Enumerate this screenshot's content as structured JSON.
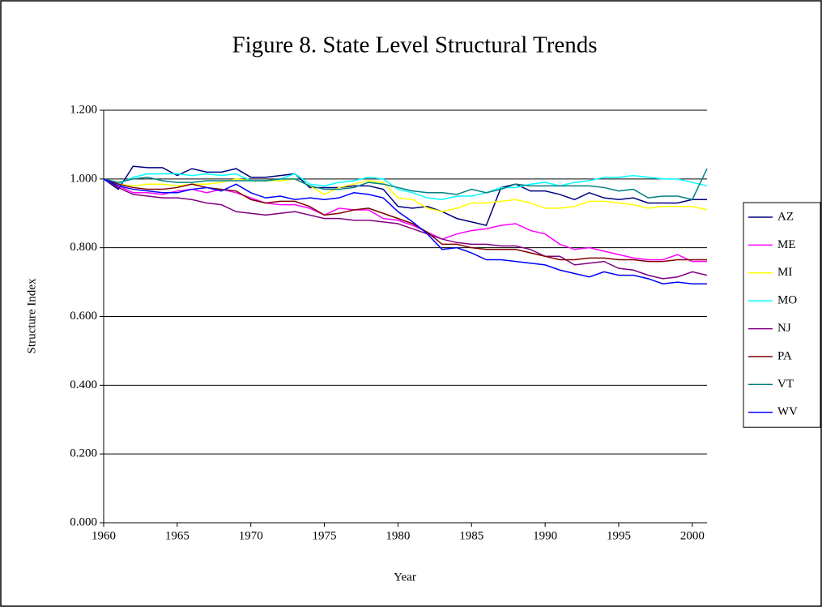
{
  "chart_data": {
    "type": "line",
    "title": "Figure 8.  State Level Structural Trends",
    "x_label": "Year",
    "y_label": "Structure Index",
    "x": [
      1960,
      1961,
      1962,
      1963,
      1964,
      1965,
      1966,
      1967,
      1968,
      1969,
      1970,
      1971,
      1972,
      1973,
      1974,
      1975,
      1976,
      1977,
      1978,
      1979,
      1980,
      1981,
      1982,
      1983,
      1984,
      1985,
      1986,
      1987,
      1988,
      1989,
      1990,
      1991,
      1992,
      1993,
      1994,
      1995,
      1996,
      1997,
      1998,
      1999,
      2000,
      2001
    ],
    "xlim": [
      1960,
      2001
    ],
    "xticks": [
      1960,
      1965,
      1970,
      1975,
      1980,
      1985,
      1990,
      1995,
      2000
    ],
    "ylim": [
      0,
      1.2
    ],
    "yticks": [
      {
        "value": 0,
        "label": "0.000"
      },
      {
        "value": 0.2,
        "label": "0.200"
      },
      {
        "value": 0.4,
        "label": "0.400"
      },
      {
        "value": 0.6,
        "label": "0.600"
      },
      {
        "value": 0.8,
        "label": "0.800"
      },
      {
        "value": 1.0,
        "label": "1.000"
      },
      {
        "value": 1.2,
        "label": "1.200"
      }
    ],
    "grid": true,
    "legend": "right",
    "series": [
      {
        "name": "AZ",
        "color": "#000080",
        "values": [
          1.0,
          0.97,
          1.037,
          1.033,
          1.033,
          1.01,
          1.03,
          1.02,
          1.02,
          1.03,
          1.005,
          1.005,
          1.01,
          1.015,
          0.975,
          0.975,
          0.975,
          0.98,
          0.98,
          0.97,
          0.92,
          0.915,
          0.92,
          0.905,
          0.885,
          0.875,
          0.865,
          0.975,
          0.985,
          0.965,
          0.965,
          0.955,
          0.94,
          0.96,
          0.945,
          0.94,
          0.945,
          0.93,
          0.93,
          0.93,
          0.94,
          0.94
        ]
      },
      {
        "name": "ME",
        "color": "#ff00ff",
        "values": [
          1.0,
          0.98,
          0.96,
          0.96,
          0.955,
          0.965,
          0.97,
          0.96,
          0.97,
          0.96,
          0.945,
          0.93,
          0.925,
          0.925,
          0.915,
          0.895,
          0.915,
          0.91,
          0.91,
          0.885,
          0.88,
          0.865,
          0.845,
          0.825,
          0.84,
          0.85,
          0.855,
          0.865,
          0.87,
          0.85,
          0.84,
          0.81,
          0.795,
          0.8,
          0.79,
          0.78,
          0.77,
          0.765,
          0.765,
          0.78,
          0.76,
          0.76
        ]
      },
      {
        "name": "MI",
        "color": "#ffff00",
        "values": [
          1.0,
          0.985,
          0.98,
          0.985,
          0.985,
          0.98,
          0.985,
          0.985,
          0.99,
          1.0,
          0.995,
          0.995,
          0.995,
          1.0,
          0.98,
          0.955,
          0.975,
          0.985,
          0.995,
          0.99,
          0.945,
          0.94,
          0.915,
          0.905,
          0.915,
          0.93,
          0.93,
          0.935,
          0.94,
          0.93,
          0.915,
          0.915,
          0.92,
          0.935,
          0.935,
          0.93,
          0.925,
          0.915,
          0.92,
          0.92,
          0.92,
          0.91
        ]
      },
      {
        "name": "MO",
        "color": "#00ffff",
        "values": [
          1.0,
          0.985,
          1.005,
          1.015,
          1.015,
          1.015,
          1.01,
          1.015,
          1.01,
          1.015,
          0.995,
          0.995,
          1.0,
          1.015,
          0.985,
          0.98,
          0.99,
          0.995,
          1.005,
          1.0,
          0.97,
          0.96,
          0.945,
          0.94,
          0.95,
          0.95,
          0.96,
          0.975,
          0.975,
          0.985,
          0.99,
          0.98,
          0.99,
          0.995,
          1.005,
          1.005,
          1.01,
          1.005,
          1.0,
          1.0,
          0.99,
          0.98
        ]
      },
      {
        "name": "NJ",
        "color": "#800080",
        "values": [
          1.0,
          0.975,
          0.955,
          0.95,
          0.945,
          0.945,
          0.94,
          0.93,
          0.925,
          0.905,
          0.9,
          0.895,
          0.9,
          0.905,
          0.895,
          0.885,
          0.885,
          0.88,
          0.88,
          0.875,
          0.87,
          0.855,
          0.84,
          0.825,
          0.815,
          0.81,
          0.81,
          0.805,
          0.805,
          0.795,
          0.775,
          0.775,
          0.75,
          0.755,
          0.76,
          0.74,
          0.735,
          0.72,
          0.71,
          0.715,
          0.73,
          0.72
        ]
      },
      {
        "name": "PA",
        "color": "#800000",
        "values": [
          1.0,
          0.985,
          0.975,
          0.97,
          0.97,
          0.975,
          0.985,
          0.975,
          0.97,
          0.965,
          0.94,
          0.93,
          0.935,
          0.935,
          0.92,
          0.895,
          0.9,
          0.91,
          0.915,
          0.9,
          0.885,
          0.87,
          0.845,
          0.81,
          0.81,
          0.8,
          0.795,
          0.795,
          0.795,
          0.785,
          0.775,
          0.765,
          0.765,
          0.77,
          0.77,
          0.765,
          0.765,
          0.76,
          0.76,
          0.765,
          0.765,
          0.765
        ]
      },
      {
        "name": "VT",
        "color": "#008080",
        "values": [
          1.0,
          0.99,
          1.0,
          1.005,
          0.995,
          0.99,
          0.99,
          0.995,
          0.995,
          0.995,
          0.995,
          0.995,
          1.0,
          1.0,
          0.98,
          0.97,
          0.97,
          0.975,
          0.99,
          0.985,
          0.975,
          0.965,
          0.96,
          0.96,
          0.955,
          0.97,
          0.96,
          0.97,
          0.985,
          0.98,
          0.98,
          0.98,
          0.98,
          0.98,
          0.975,
          0.965,
          0.97,
          0.945,
          0.95,
          0.95,
          0.94,
          1.03
        ]
      },
      {
        "name": "WV",
        "color": "#0000ff",
        "values": [
          1.0,
          0.98,
          0.97,
          0.965,
          0.96,
          0.96,
          0.97,
          0.975,
          0.965,
          0.985,
          0.96,
          0.945,
          0.95,
          0.94,
          0.945,
          0.94,
          0.945,
          0.96,
          0.955,
          0.945,
          0.905,
          0.875,
          0.84,
          0.795,
          0.8,
          0.785,
          0.765,
          0.765,
          0.76,
          0.755,
          0.75,
          0.735,
          0.725,
          0.715,
          0.73,
          0.72,
          0.72,
          0.71,
          0.695,
          0.7,
          0.695,
          0.695
        ]
      }
    ]
  }
}
